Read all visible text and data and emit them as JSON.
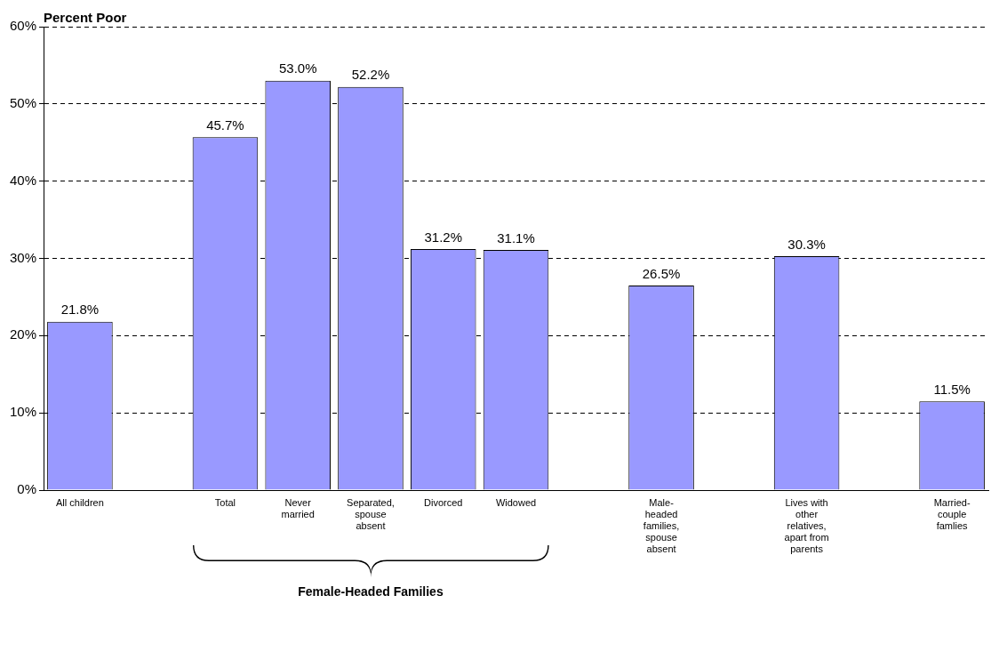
{
  "chart_data": {
    "type": "bar",
    "ylabel": "Percent Poor",
    "categories": [
      "All children",
      null,
      "Total",
      "Never married",
      "Separated, spouse absent",
      "Divorced",
      "Widowed",
      null,
      "Male-headed families, spouse absent",
      null,
      "Lives with other relatives, apart from parents",
      null,
      "Married-couple famlies"
    ],
    "values": [
      21.8,
      null,
      45.7,
      53.0,
      52.2,
      31.2,
      31.1,
      null,
      26.5,
      null,
      30.3,
      null,
      11.5
    ],
    "value_labels": [
      "21.8%",
      null,
      "45.7%",
      "53.0%",
      "52.2%",
      "31.2%",
      "31.1%",
      null,
      "26.5%",
      null,
      "30.3%",
      null,
      "11.5%"
    ],
    "color": "#9999ff",
    "ylim": [
      0,
      60
    ],
    "yticks": [
      {
        "value": 0,
        "label": "0%"
      },
      {
        "value": 10,
        "label": "10%"
      },
      {
        "value": 20,
        "label": "20%"
      },
      {
        "value": 30,
        "label": "30%"
      },
      {
        "value": 40,
        "label": "40%"
      },
      {
        "value": 50,
        "label": "50%"
      },
      {
        "value": 60,
        "label": "60%"
      }
    ],
    "grid": "y",
    "legend": false,
    "annotations": [
      "Female-Headed Families"
    ]
  }
}
